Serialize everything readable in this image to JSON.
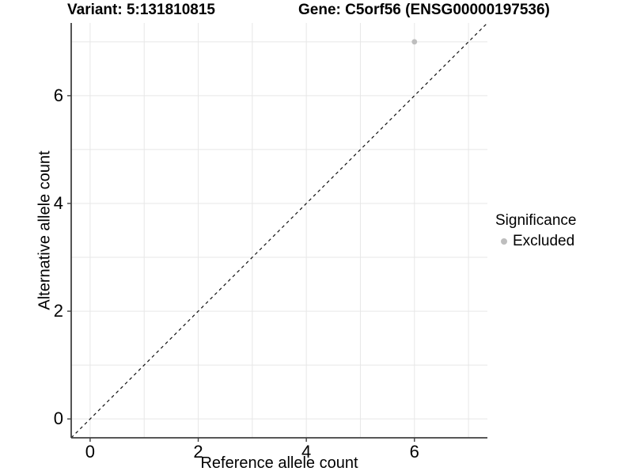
{
  "title": {
    "left": "Variant: 5:131810815",
    "right": "Gene: C5orf56 (ENSG00000197536)"
  },
  "chart_data": {
    "type": "scatter",
    "xlabel": "Reference allele count",
    "ylabel": "Alternative allele count",
    "xlim": [
      -0.35,
      7.35
    ],
    "ylim": [
      -0.35,
      7.35
    ],
    "xticks": [
      0,
      2,
      4,
      6
    ],
    "yticks": [
      0,
      2,
      4,
      6
    ],
    "grid_interval": 1,
    "grid": true,
    "points": [
      {
        "x": 6,
        "y": 7,
        "series": "Excluded"
      }
    ],
    "reference_line": {
      "slope": 1,
      "intercept": 0,
      "style": "dashed"
    },
    "legend": {
      "title": "Significance",
      "position": "right",
      "items": [
        {
          "label": "Excluded",
          "color": "#bebebe"
        }
      ]
    },
    "colors": {
      "point": "#bebebe",
      "grid": "#e7e7e7",
      "axis": "#404040",
      "reference_line": "#111111",
      "tick_text": "#000000"
    }
  }
}
